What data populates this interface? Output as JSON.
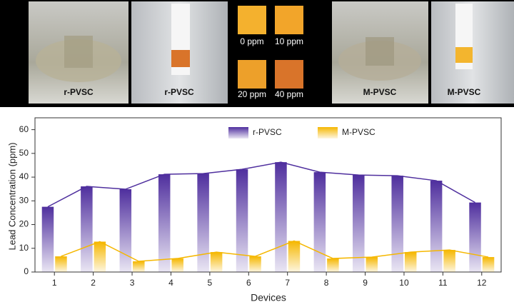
{
  "panels": {
    "labels": [
      "r-PVSC",
      "r-PVSC",
      "0 ppm",
      "10 ppm",
      "20 ppm",
      "40 ppm",
      "M-PVSC",
      "M-PVSC"
    ]
  },
  "chart_data": {
    "type": "bar",
    "x_label": "Devices",
    "y_label": "Lead Concentration (ppm)",
    "categories": [
      "1",
      "2",
      "3",
      "4",
      "5",
      "6",
      "7",
      "8",
      "9",
      "10",
      "11",
      "12"
    ],
    "series": [
      {
        "name": "r-PVSC",
        "color": "#4f2f9e",
        "values": [
          27.5,
          36.1,
          34.9,
          41.2,
          41.5,
          43.3,
          46.3,
          42.1,
          40.9,
          40.6,
          38.5,
          29.3
        ]
      },
      {
        "name": "M-PVSC",
        "color": "#f5b700",
        "values": [
          6.6,
          12.8,
          4.5,
          5.7,
          8.4,
          6.6,
          13.1,
          5.7,
          6.3,
          8.4,
          9.3,
          6.3
        ]
      }
    ],
    "ylim": [
      0,
      65
    ],
    "yticks": [
      0,
      10,
      20,
      30,
      40,
      50,
      60
    ],
    "grid": false,
    "legend": "top"
  }
}
